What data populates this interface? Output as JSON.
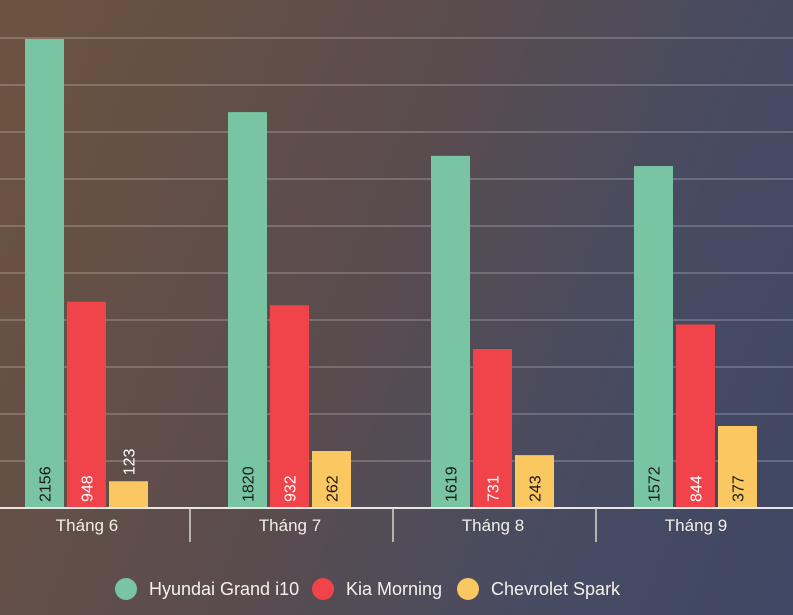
{
  "chart_data": {
    "type": "bar",
    "title": "",
    "xlabel": "",
    "ylabel": "",
    "ylim": [
      0,
      2210
    ],
    "grid": true,
    "legend": "bottom-center",
    "categories": [
      "Tháng 6",
      "Tháng 7",
      "Tháng 8",
      "Tháng 9"
    ],
    "series": [
      {
        "name": "Hyundai Grand i10",
        "color": "#79c4a3",
        "label_color": "#1a1a1a",
        "values": [
          2156,
          1820,
          1619,
          1572
        ]
      },
      {
        "name": "Kia Morning",
        "color": "#f0434a",
        "label_color": "#ffffff",
        "values": [
          948,
          932,
          731,
          844
        ]
      },
      {
        "name": "Chevrolet Spark",
        "color": "#fbc760",
        "label_color": "#1a1a1a",
        "values": [
          123,
          262,
          243,
          377
        ]
      }
    ]
  }
}
